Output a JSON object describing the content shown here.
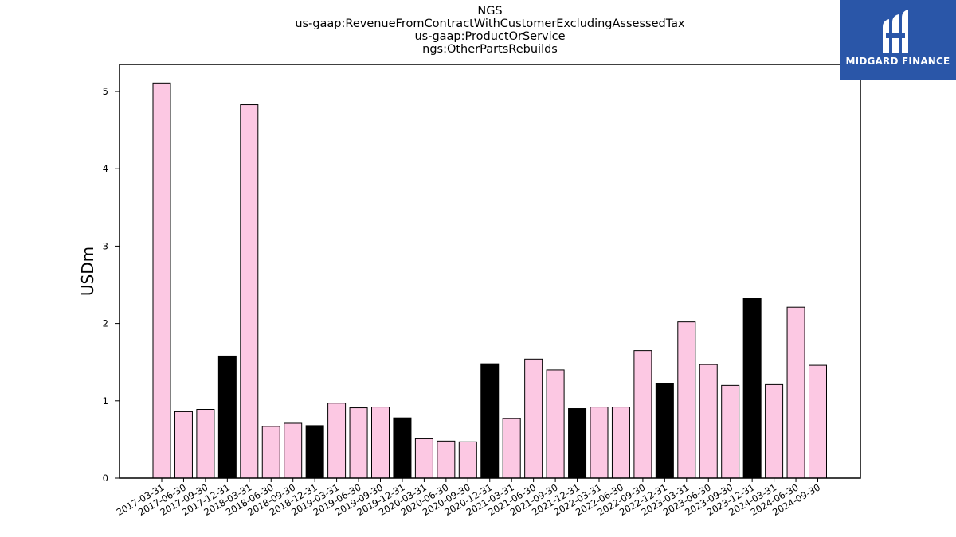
{
  "chart_data": {
    "type": "bar",
    "title_lines": [
      "NGS",
      "us-gaap:RevenueFromContractWithCustomerExcludingAssessedTax",
      "us-gaap:ProductOrService",
      "ngs:OtherPartsRebuilds"
    ],
    "xlabel": "",
    "ylabel": "USDm",
    "ylim": [
      0,
      5.35
    ],
    "yticks": [
      0,
      1,
      2,
      3,
      4,
      5
    ],
    "grid": false,
    "categories": [
      "2017-03-31",
      "2017-06-30",
      "2017-09-30",
      "2017-12-31",
      "2018-03-31",
      "2018-06-30",
      "2018-09-30",
      "2018-12-31",
      "2019-03-31",
      "2019-06-30",
      "2019-09-30",
      "2019-12-31",
      "2020-03-31",
      "2020-06-30",
      "2020-09-30",
      "2020-12-31",
      "2021-03-31",
      "2021-06-30",
      "2021-09-30",
      "2021-12-31",
      "2022-03-31",
      "2022-06-30",
      "2022-09-30",
      "2022-12-31",
      "2023-03-31",
      "2023-06-30",
      "2023-09-30",
      "2023-12-31",
      "2024-03-31",
      "2024-06-30",
      "2024-09-30"
    ],
    "values": [
      5.11,
      0.86,
      0.89,
      1.58,
      4.83,
      0.67,
      0.71,
      0.68,
      0.97,
      0.91,
      0.92,
      0.78,
      0.51,
      0.48,
      0.47,
      1.48,
      0.77,
      1.54,
      1.4,
      0.9,
      0.92,
      0.92,
      1.65,
      1.22,
      2.02,
      1.47,
      1.2,
      2.33,
      1.21,
      2.21,
      1.46
    ],
    "bar_colors": [
      "#fcc8e3",
      "#fcc8e3",
      "#fcc8e3",
      "#000000",
      "#fcc8e3",
      "#fcc8e3",
      "#fcc8e3",
      "#000000",
      "#fcc8e3",
      "#fcc8e3",
      "#fcc8e3",
      "#000000",
      "#fcc8e3",
      "#fcc8e3",
      "#fcc8e3",
      "#000000",
      "#fcc8e3",
      "#fcc8e3",
      "#fcc8e3",
      "#000000",
      "#fcc8e3",
      "#fcc8e3",
      "#fcc8e3",
      "#000000",
      "#fcc8e3",
      "#fcc8e3",
      "#fcc8e3",
      "#000000",
      "#fcc8e3",
      "#fcc8e3",
      "#fcc8e3"
    ]
  },
  "logo": {
    "text": "MIDGARD FINANCE",
    "background": "#2a56a8"
  }
}
